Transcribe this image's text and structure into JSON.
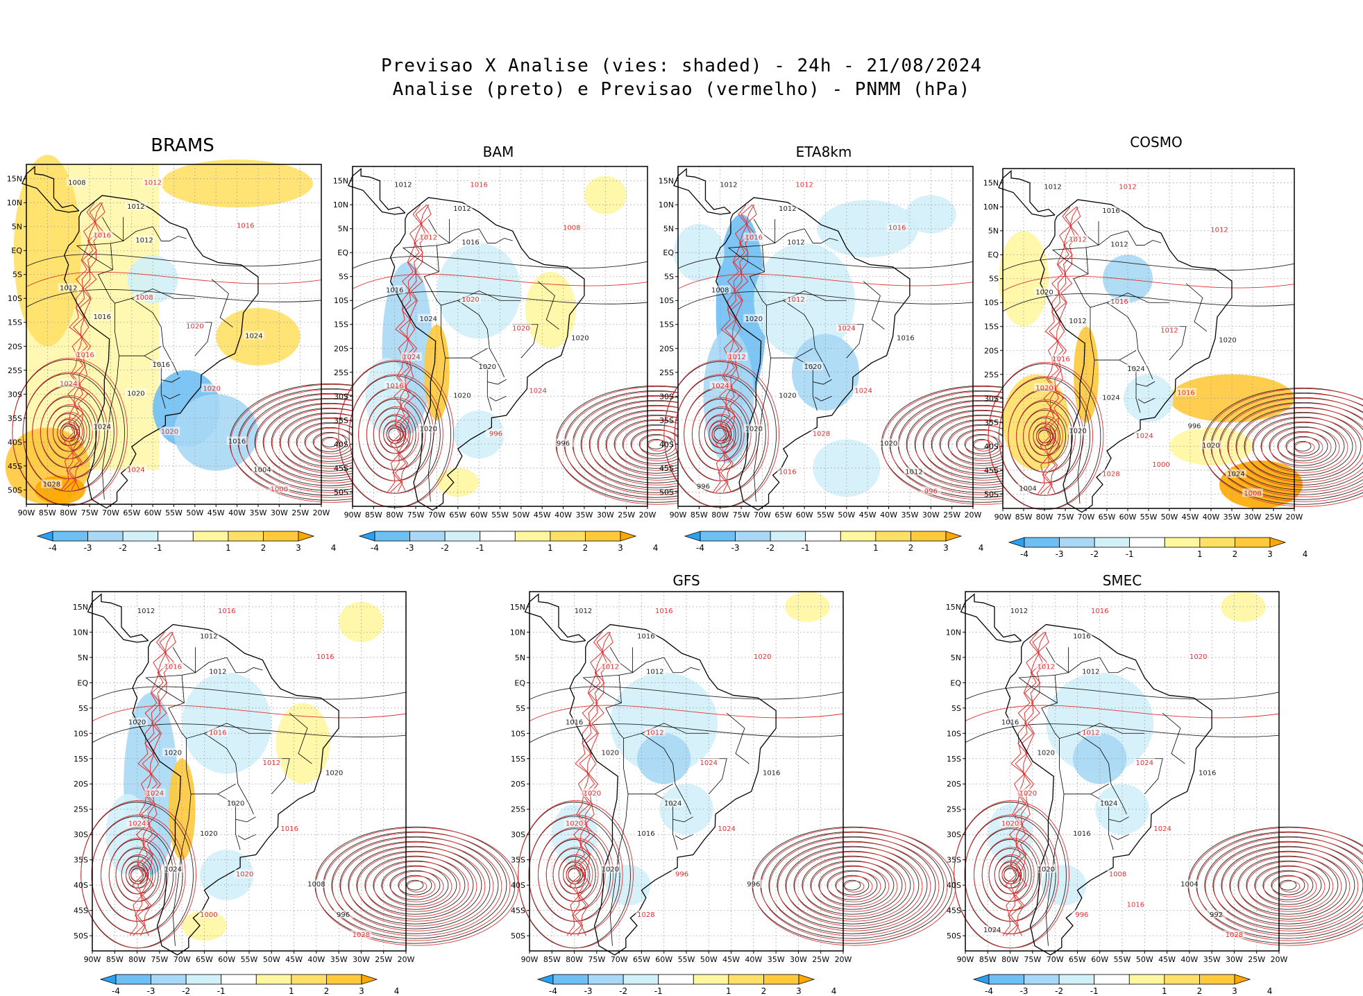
{
  "header": {
    "line1": "Previsao X Analise (vies: shaded) - 24h - 21/08/2024",
    "line2": "Analise (preto) e Previsao (vermelho) - PNMM (hPa)"
  },
  "axes": {
    "lat_labels": [
      "15N",
      "10N",
      "5N",
      "EQ",
      "5S",
      "10S",
      "15S",
      "20S",
      "25S",
      "30S",
      "35S",
      "40S",
      "45S",
      "50S"
    ],
    "lon_labels": [
      "90W",
      "85W",
      "80W",
      "75W",
      "70W",
      "65W",
      "60W",
      "55W",
      "50W",
      "45W",
      "40W",
      "35W",
      "30W",
      "25W",
      "20W"
    ]
  },
  "colorbar": {
    "labels": [
      "-4",
      "-3",
      "-2",
      "-1",
      "1",
      "2",
      "3",
      "4"
    ],
    "colors": [
      "#2ca0f0",
      "#6ebff4",
      "#a8d8f5",
      "#d2f0f8",
      "#ffffff",
      "#fff6a0",
      "#ffe066",
      "#ffc93c",
      "#ffa800"
    ]
  },
  "panels": [
    {
      "model": "BRAMS",
      "bias": "warm",
      "labels": [
        "1008",
        "1012",
        "1012",
        "1016",
        "1012",
        "1016",
        "1012",
        "1008",
        "1016",
        "1020",
        "1024",
        "1016",
        "1016",
        "1024",
        "1020",
        "1020",
        "1024",
        "1020",
        "1016",
        "1024",
        "1004",
        "1000",
        "1028"
      ]
    },
    {
      "model": "BAM",
      "bias": "mixed",
      "labels": [
        "1012",
        "1016",
        "1012",
        "1012",
        "1016",
        "1008",
        "1016",
        "1020",
        "1024",
        "1020",
        "1020",
        "1024",
        "1020",
        "1016",
        "1020",
        "1024",
        "1020",
        "996",
        "996"
      ]
    },
    {
      "model": "ETA8km",
      "bias": "cool",
      "labels": [
        "1012",
        "1012",
        "1012",
        "1016",
        "1012",
        "1016",
        "1008",
        "1012",
        "1020",
        "1024",
        "1016",
        "1012",
        "1020",
        "1024",
        "1020",
        "1024",
        "1020",
        "1028",
        "1020",
        "1016",
        "1012",
        "996",
        "996"
      ]
    },
    {
      "model": "COSMO",
      "bias": "mixed-warm",
      "labels": [
        "1012",
        "1012",
        "1016",
        "1012",
        "1012",
        "1012",
        "1020",
        "1016",
        "1012",
        "1012",
        "1020",
        "1016",
        "1024",
        "1020",
        "1024",
        "1016",
        "1020",
        "1024",
        "1020",
        "1028",
        "1024",
        "1008",
        "1004",
        "1000",
        "996"
      ]
    },
    {
      "model": "",
      "bias": "mixed",
      "labels": [
        "1012",
        "1016",
        "1012",
        "1016",
        "1012",
        "1016",
        "1020",
        "1016",
        "1020",
        "1012",
        "1020",
        "1024",
        "1020",
        "1024",
        "1020",
        "1016",
        "1024",
        "1020",
        "1008",
        "1000",
        "996",
        "1028"
      ]
    },
    {
      "model": "GFS",
      "bias": "cool-light",
      "labels": [
        "1012",
        "1016",
        "1016",
        "1012",
        "1012",
        "1020",
        "1016",
        "1012",
        "1020",
        "1024",
        "1016",
        "1020",
        "1024",
        "1020",
        "1016",
        "1024",
        "1020",
        "996",
        "996",
        "1028"
      ]
    },
    {
      "model": "SMEC",
      "bias": "cool-light",
      "labels": [
        "1012",
        "1016",
        "1016",
        "1012",
        "1012",
        "1020",
        "1016",
        "1012",
        "1020",
        "1024",
        "1016",
        "1020",
        "1024",
        "1020",
        "1016",
        "1024",
        "1020",
        "1008",
        "1004",
        "996",
        "992",
        "1028",
        "1024",
        "1016"
      ]
    }
  ]
}
